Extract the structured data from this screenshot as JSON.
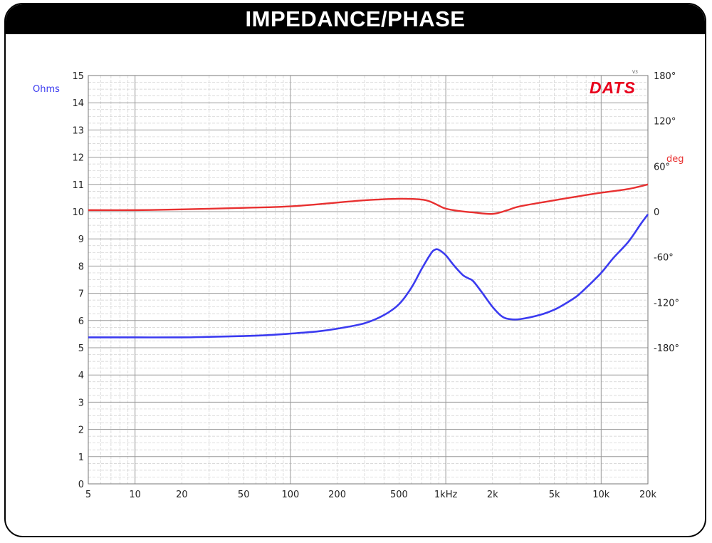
{
  "chart_data": {
    "type": "line",
    "title": "IMPEDANCE/PHASE",
    "logo": "DATS",
    "logo_version": "V3",
    "x_scale": "log",
    "xlim": [
      5,
      20000
    ],
    "x_ticks": [
      {
        "value": 5,
        "label": "5"
      },
      {
        "value": 10,
        "label": "10"
      },
      {
        "value": 20,
        "label": "20"
      },
      {
        "value": 50,
        "label": "50"
      },
      {
        "value": 100,
        "label": "100"
      },
      {
        "value": 200,
        "label": "200"
      },
      {
        "value": 500,
        "label": "500"
      },
      {
        "value": 1000,
        "label": "1kHz"
      },
      {
        "value": 2000,
        "label": "2k"
      },
      {
        "value": 5000,
        "label": "5k"
      },
      {
        "value": 10000,
        "label": "10k"
      },
      {
        "value": 20000,
        "label": "20k"
      }
    ],
    "y_left": {
      "label": "Ohms",
      "ylim": [
        0,
        15
      ],
      "ticks": [
        "0",
        "1",
        "2",
        "3",
        "4",
        "5",
        "6",
        "7",
        "8",
        "9",
        "10",
        "11",
        "12",
        "13",
        "14",
        "15"
      ]
    },
    "y_right": {
      "label": "deg",
      "ylim": [
        -360,
        180
      ],
      "ticks": [
        {
          "value": 180,
          "label": "180°"
        },
        {
          "value": 120,
          "label": "120°"
        },
        {
          "value": 60,
          "label": "60°"
        },
        {
          "value": 0,
          "label": "0"
        },
        {
          "value": -60,
          "label": "-60°"
        },
        {
          "value": -120,
          "label": "-120°"
        },
        {
          "value": -180,
          "label": "-180°"
        }
      ]
    },
    "grid": true,
    "colors": {
      "impedance": "#3b3bf0",
      "phase": "#e83030",
      "logo": "#e8001c"
    },
    "series": [
      {
        "key": "impedance",
        "axis": "left",
        "points": [
          [
            5,
            5.38
          ],
          [
            10,
            5.38
          ],
          [
            20,
            5.38
          ],
          [
            30,
            5.4
          ],
          [
            50,
            5.43
          ],
          [
            70,
            5.46
          ],
          [
            100,
            5.52
          ],
          [
            150,
            5.6
          ],
          [
            200,
            5.7
          ],
          [
            300,
            5.9
          ],
          [
            400,
            6.2
          ],
          [
            500,
            6.6
          ],
          [
            600,
            7.2
          ],
          [
            700,
            7.9
          ],
          [
            800,
            8.45
          ],
          [
            850,
            8.6
          ],
          [
            900,
            8.6
          ],
          [
            1000,
            8.4
          ],
          [
            1100,
            8.1
          ],
          [
            1200,
            7.85
          ],
          [
            1300,
            7.65
          ],
          [
            1400,
            7.55
          ],
          [
            1500,
            7.45
          ],
          [
            1700,
            7.05
          ],
          [
            2000,
            6.5
          ],
          [
            2300,
            6.15
          ],
          [
            2600,
            6.05
          ],
          [
            3000,
            6.05
          ],
          [
            4000,
            6.2
          ],
          [
            5000,
            6.4
          ],
          [
            6000,
            6.65
          ],
          [
            7000,
            6.9
          ],
          [
            8000,
            7.2
          ],
          [
            10000,
            7.75
          ],
          [
            12000,
            8.3
          ],
          [
            15000,
            8.9
          ],
          [
            18000,
            9.55
          ],
          [
            20000,
            9.9
          ]
        ]
      },
      {
        "key": "phase",
        "axis": "right",
        "points": [
          [
            5,
            2
          ],
          [
            10,
            2
          ],
          [
            20,
            3
          ],
          [
            50,
            5
          ],
          [
            100,
            7
          ],
          [
            200,
            12
          ],
          [
            300,
            15
          ],
          [
            500,
            17
          ],
          [
            700,
            16
          ],
          [
            800,
            13
          ],
          [
            900,
            8
          ],
          [
            1000,
            4
          ],
          [
            1200,
            1
          ],
          [
            1500,
            -1
          ],
          [
            2000,
            -3
          ],
          [
            2500,
            2
          ],
          [
            3000,
            7
          ],
          [
            5000,
            15
          ],
          [
            7000,
            20
          ],
          [
            10000,
            25
          ],
          [
            15000,
            30
          ],
          [
            20000,
            36
          ]
        ]
      }
    ]
  }
}
